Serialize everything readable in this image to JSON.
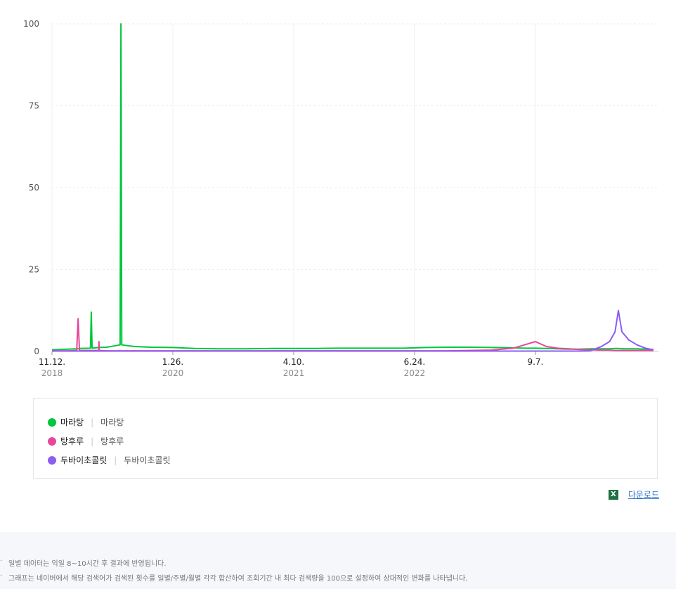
{
  "chart_data": {
    "type": "line",
    "x": [
      0,
      30,
      60,
      90,
      95,
      100,
      140,
      143,
      146,
      170,
      171,
      172,
      200,
      248,
      251,
      254,
      300,
      360,
      440,
      520,
      600,
      700,
      800,
      880,
      960,
      1040,
      1120,
      1200,
      1280,
      1360,
      1440,
      1520,
      1600,
      1680,
      1720,
      1760,
      1800,
      1840,
      1880,
      1920,
      1960,
      2000,
      2030,
      2050,
      2062,
      2075,
      2100,
      2130,
      2160,
      2190
    ],
    "xlim": [
      0,
      2190
    ],
    "xticks": [
      {
        "value": 0,
        "label": "11.12.",
        "sublabel": "2018"
      },
      {
        "value": 440,
        "label": "1.26.",
        "sublabel": "2020"
      },
      {
        "value": 880,
        "label": "4.10.",
        "sublabel": "2021"
      },
      {
        "value": 1320,
        "label": "6.24.",
        "sublabel": "2022"
      },
      {
        "value": 1760,
        "label": "9.7."
      }
    ],
    "ylim": [
      0,
      100
    ],
    "yticks": [
      0,
      25,
      50,
      75,
      100
    ],
    "grid": true,
    "series": [
      {
        "name": "마라탕",
        "keywords": "마라탕",
        "color": "#00c73c",
        "values": [
          0.5,
          0.6,
          0.7,
          0.8,
          0.8,
          0.9,
          1,
          12,
          1,
          1.2,
          1.2,
          1.2,
          1.3,
          2,
          100,
          2,
          1.5,
          1.3,
          1.2,
          0.9,
          0.8,
          0.8,
          0.9,
          0.9,
          0.9,
          1,
          1,
          1,
          1,
          1.2,
          1.3,
          1.3,
          1.2,
          1.1,
          1,
          1,
          0.9,
          0.8,
          0.7,
          0.7,
          0.8,
          0.8,
          0.8,
          0.9,
          0.9,
          0.8,
          0.8,
          0.8,
          0.7,
          0.6
        ]
      },
      {
        "name": "탕후루",
        "keywords": "탕후루",
        "color": "#e6479a",
        "values": [
          0.2,
          0.2,
          0.2,
          0.3,
          10,
          0.3,
          0.3,
          0.3,
          0.3,
          0.3,
          3,
          0.3,
          0.2,
          0.2,
          0.2,
          0.2,
          0.2,
          0.2,
          0.2,
          0.2,
          0.2,
          0.2,
          0.2,
          0.2,
          0.2,
          0.2,
          0.2,
          0.2,
          0.2,
          0.2,
          0.2,
          0.3,
          0.4,
          1,
          2,
          3,
          1.5,
          1,
          0.8,
          0.6,
          0.5,
          0.4,
          0.4,
          0.3,
          0.3,
          0.3,
          0.3,
          0.3,
          0.3,
          0.3
        ]
      },
      {
        "name": "두바이초콜릿",
        "keywords": "두바이초콜릿",
        "color": "#8c5cf5",
        "values": [
          0.1,
          0.1,
          0.1,
          0.1,
          0.1,
          0.1,
          0.1,
          0.1,
          0.1,
          0.1,
          0.1,
          0.1,
          0.1,
          0.1,
          0.1,
          0.1,
          0.1,
          0.1,
          0.1,
          0.1,
          0.1,
          0.1,
          0.1,
          0.1,
          0.1,
          0.1,
          0.1,
          0.1,
          0.1,
          0.1,
          0.1,
          0.1,
          0.1,
          0.1,
          0.1,
          0.1,
          0.1,
          0.1,
          0.1,
          0.1,
          0.2,
          1.5,
          3,
          6,
          12.5,
          6,
          3.5,
          2,
          1,
          0.5
        ]
      }
    ]
  },
  "download": "다운로드",
  "notes": [
    "일별 데이터는 익일 8~10시간 후 결과에 반영됩니다.",
    "그래프는 네이버에서 해당 검색어가 검색된 횟수를 일별/주별/월별 각각 합산하여 조회기간 내 최다 검색량을 100으로 설정하여 상대적인 변화를 나타냅니다."
  ]
}
